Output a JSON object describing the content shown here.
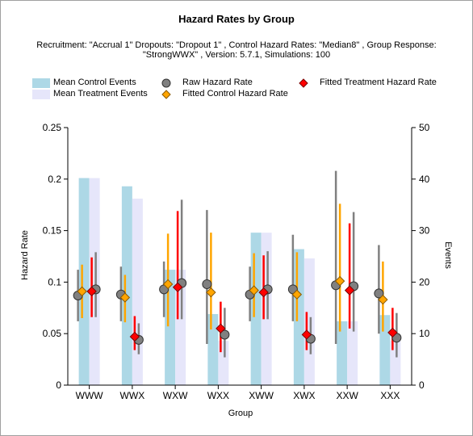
{
  "chart_data": {
    "type": "bar",
    "title": "Hazard Rates by Group",
    "subtitle_line1": "Recruitment: \"Accrual 1\" Dropouts: \"Dropout 1\" , Control Hazard Rates: \"Median8\" , Group Response:",
    "subtitle_line2": "\"StrongWWX\" , Version: 5.7.1, Simulations: 100",
    "xlabel": "Group",
    "ylabel": "Hazard Rate",
    "y2label": "Events",
    "categories": [
      "WWW",
      "WWX",
      "WXW",
      "WXX",
      "XWW",
      "XWX",
      "XXW",
      "XXX"
    ],
    "ylim": [
      0,
      0.25
    ],
    "y_ticks": [
      "0",
      "0.05",
      "0.1",
      "0.15",
      "0.2",
      "0.25"
    ],
    "y2lim": [
      0,
      50
    ],
    "y2_ticks": [
      "0",
      "10",
      "20",
      "30",
      "40",
      "50"
    ],
    "legend_placement": "top",
    "legend": [
      {
        "name": "Mean Control Events",
        "kind": "bar",
        "color": "#add8e6"
      },
      {
        "name": "Mean Treatment Events",
        "kind": "bar",
        "color": "#e6e6fa"
      },
      {
        "name": "Raw Hazard Rate",
        "kind": "circle",
        "color": "#808080"
      },
      {
        "name": "Fitted Control Hazard Rate",
        "kind": "diamond",
        "color": "#ffa500"
      },
      {
        "name": "Fitted Treatment Hazard Rate",
        "kind": "diamond",
        "color": "#ff0000"
      }
    ],
    "bars": {
      "control_events": [
        40.2,
        38.6,
        22.4,
        13.8,
        29.6,
        26.4,
        12.4,
        13.6
      ],
      "treatment_events": [
        40.2,
        36.2,
        22.4,
        8.6,
        29.6,
        24.6,
        12.4,
        8.6
      ]
    },
    "raw_hazard": {
      "control": [
        {
          "value": 0.087,
          "low": 0.062,
          "high": 0.112
        },
        {
          "value": 0.088,
          "low": 0.062,
          "high": 0.115
        },
        {
          "value": 0.093,
          "low": 0.066,
          "high": 0.12
        },
        {
          "value": 0.098,
          "low": 0.04,
          "high": 0.17
        },
        {
          "value": 0.088,
          "low": 0.062,
          "high": 0.115
        },
        {
          "value": 0.093,
          "low": 0.062,
          "high": 0.146
        },
        {
          "value": 0.097,
          "low": 0.04,
          "high": 0.208
        },
        {
          "value": 0.089,
          "low": 0.05,
          "high": 0.136
        }
      ],
      "treatment": [
        {
          "value": 0.093,
          "low": 0.066,
          "high": 0.129
        },
        {
          "value": 0.044,
          "low": 0.03,
          "high": 0.06
        },
        {
          "value": 0.099,
          "low": 0.064,
          "high": 0.18
        },
        {
          "value": 0.049,
          "low": 0.027,
          "high": 0.075
        },
        {
          "value": 0.093,
          "low": 0.064,
          "high": 0.13
        },
        {
          "value": 0.045,
          "low": 0.03,
          "high": 0.066
        },
        {
          "value": 0.096,
          "low": 0.052,
          "high": 0.168
        },
        {
          "value": 0.046,
          "low": 0.027,
          "high": 0.07
        }
      ]
    },
    "fitted_control_hazard": [
      {
        "value": 0.091,
        "low": 0.065,
        "high": 0.117
      },
      {
        "value": 0.085,
        "low": 0.061,
        "high": 0.107
      },
      {
        "value": 0.098,
        "low": 0.057,
        "high": 0.147
      },
      {
        "value": 0.09,
        "low": 0.054,
        "high": 0.148
      },
      {
        "value": 0.092,
        "low": 0.066,
        "high": 0.128
      },
      {
        "value": 0.088,
        "low": 0.062,
        "high": 0.129
      },
      {
        "value": 0.101,
        "low": 0.052,
        "high": 0.176
      },
      {
        "value": 0.083,
        "low": 0.052,
        "high": 0.12
      }
    ],
    "fitted_treatment_hazard": [
      {
        "value": 0.091,
        "low": 0.066,
        "high": 0.124
      },
      {
        "value": 0.047,
        "low": 0.034,
        "high": 0.067
      },
      {
        "value": 0.095,
        "low": 0.064,
        "high": 0.169
      },
      {
        "value": 0.055,
        "low": 0.032,
        "high": 0.081
      },
      {
        "value": 0.09,
        "low": 0.064,
        "high": 0.126
      },
      {
        "value": 0.049,
        "low": 0.034,
        "high": 0.071
      },
      {
        "value": 0.092,
        "low": 0.055,
        "high": 0.157
      },
      {
        "value": 0.051,
        "low": 0.034,
        "high": 0.075
      }
    ]
  }
}
